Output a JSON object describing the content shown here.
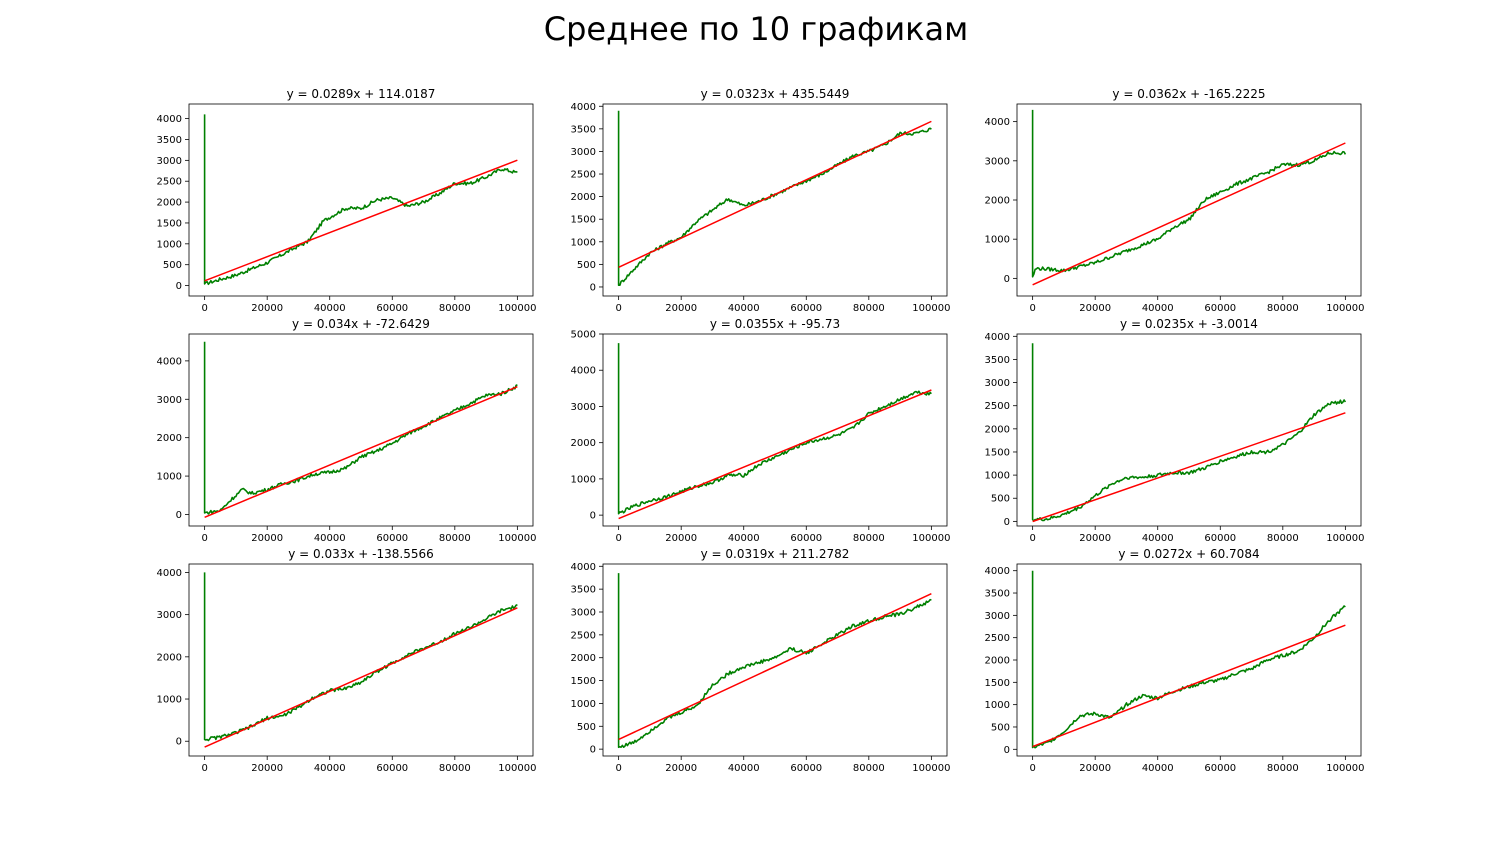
{
  "figure": {
    "title": "Среднее по 10 графикам"
  },
  "colors": {
    "data_line": "#008000",
    "fit_line": "#ff0000",
    "axes": "#000000"
  },
  "chart_data": [
    {
      "type": "line",
      "title": "y = 0.0289x + 114.0187",
      "xlim": [
        -5000,
        105000
      ],
      "ylim": [
        -250,
        4350
      ],
      "xticks": [
        0,
        20000,
        40000,
        60000,
        80000,
        100000
      ],
      "yticks": [
        0,
        500,
        1000,
        1500,
        2000,
        2500,
        3000,
        3500,
        4000
      ],
      "spike": [
        4100,
        3500,
        40
      ],
      "series": [
        {
          "role": "data",
          "x": [
            0,
            5000,
            10000,
            20000,
            30000,
            33000,
            38000,
            45000,
            50000,
            55000,
            60000,
            65000,
            70000,
            75000,
            80000,
            85000,
            90000,
            95000,
            100000
          ],
          "y": [
            40,
            150,
            250,
            550,
            950,
            1050,
            1550,
            1850,
            1850,
            2050,
            2100,
            1900,
            2000,
            2200,
            2450,
            2450,
            2600,
            2800,
            2700
          ]
        },
        {
          "role": "fit",
          "x": [
            0,
            100000
          ],
          "y": [
            114.0187,
            3004.0187
          ]
        }
      ]
    },
    {
      "type": "line",
      "title": "y = 0.0323x + 435.5449",
      "xlim": [
        -5000,
        105000
      ],
      "ylim": [
        -200,
        4050
      ],
      "xticks": [
        0,
        20000,
        40000,
        60000,
        80000,
        100000
      ],
      "yticks": [
        0,
        500,
        1000,
        1500,
        2000,
        2500,
        3000,
        3500,
        4000
      ],
      "spike": [
        3900,
        3500,
        40
      ],
      "series": [
        {
          "role": "data",
          "x": [
            0,
            5000,
            10000,
            15000,
            20000,
            25000,
            30000,
            35000,
            40000,
            45000,
            50000,
            55000,
            60000,
            65000,
            70000,
            75000,
            80000,
            85000,
            90000,
            95000,
            100000
          ],
          "y": [
            40,
            400,
            750,
            950,
            1100,
            1450,
            1700,
            1950,
            1800,
            1900,
            2050,
            2200,
            2350,
            2500,
            2700,
            2900,
            3000,
            3150,
            3400,
            3400,
            3500
          ]
        },
        {
          "role": "fit",
          "x": [
            0,
            100000
          ],
          "y": [
            435.5449,
            3665.5449
          ]
        }
      ]
    },
    {
      "type": "line",
      "title": "y = 0.0362x + -165.2225",
      "xlim": [
        -5000,
        105000
      ],
      "ylim": [
        -450,
        4450
      ],
      "xticks": [
        0,
        20000,
        40000,
        60000,
        80000,
        100000
      ],
      "yticks": [
        0,
        1000,
        2000,
        3000,
        4000
      ],
      "spike": [
        4300,
        2800,
        40
      ],
      "series": [
        {
          "role": "data",
          "x": [
            0,
            1000,
            3000,
            10000,
            15000,
            20000,
            30000,
            40000,
            45000,
            50000,
            55000,
            60000,
            65000,
            70000,
            75000,
            80000,
            85000,
            90000,
            95000,
            100000
          ],
          "y": [
            40,
            250,
            250,
            200,
            300,
            400,
            700,
            1000,
            1300,
            1500,
            2000,
            2200,
            2400,
            2550,
            2700,
            2900,
            2900,
            3000,
            3200,
            3200
          ]
        },
        {
          "role": "fit",
          "x": [
            0,
            100000
          ],
          "y": [
            -165.2225,
            3454.7775
          ]
        }
      ]
    },
    {
      "type": "line",
      "title": "y = 0.034x + -72.6429",
      "xlim": [
        -5000,
        105000
      ],
      "ylim": [
        -300,
        4700
      ],
      "xticks": [
        0,
        20000,
        40000,
        60000,
        80000,
        100000
      ],
      "yticks": [
        0,
        1000,
        2000,
        3000,
        4000
      ],
      "spike": [
        4500,
        100,
        40
      ],
      "series": [
        {
          "role": "data",
          "x": [
            0,
            5000,
            8000,
            12000,
            15000,
            20000,
            25000,
            30000,
            35000,
            40000,
            45000,
            50000,
            55000,
            60000,
            65000,
            70000,
            75000,
            80000,
            85000,
            90000,
            95000,
            100000
          ],
          "y": [
            40,
            100,
            350,
            650,
            550,
            650,
            800,
            900,
            1050,
            1100,
            1200,
            1500,
            1650,
            1850,
            2100,
            2300,
            2500,
            2700,
            2900,
            3100,
            3150,
            3350
          ]
        },
        {
          "role": "fit",
          "x": [
            0,
            100000
          ],
          "y": [
            -72.6429,
            3327.3571
          ]
        }
      ]
    },
    {
      "type": "line",
      "title": "y = 0.0355x + -95.73",
      "xlim": [
        -5000,
        105000
      ],
      "ylim": [
        -300,
        5000
      ],
      "xticks": [
        0,
        20000,
        40000,
        60000,
        80000,
        100000
      ],
      "yticks": [
        0,
        1000,
        2000,
        3000,
        4000,
        5000
      ],
      "spike": [
        4750,
        2200,
        40
      ],
      "series": [
        {
          "role": "data",
          "x": [
            0,
            5000,
            10000,
            15000,
            20000,
            25000,
            30000,
            35000,
            40000,
            45000,
            50000,
            55000,
            60000,
            65000,
            70000,
            75000,
            80000,
            85000,
            90000,
            95000,
            100000
          ],
          "y": [
            40,
            250,
            400,
            500,
            650,
            800,
            900,
            1100,
            1100,
            1400,
            1600,
            1800,
            2000,
            2100,
            2200,
            2400,
            2800,
            3000,
            3200,
            3400,
            3350
          ]
        },
        {
          "role": "fit",
          "x": [
            0,
            100000
          ],
          "y": [
            -95.73,
            3454.27
          ]
        }
      ]
    },
    {
      "type": "line",
      "title": "y = 0.0235x + -3.0014",
      "xlim": [
        -5000,
        105000
      ],
      "ylim": [
        -100,
        4050
      ],
      "xticks": [
        0,
        20000,
        40000,
        60000,
        80000,
        100000
      ],
      "yticks": [
        0,
        500,
        1000,
        1500,
        2000,
        2500,
        3000,
        3500,
        4000
      ],
      "spike": [
        3850,
        2350,
        40
      ],
      "series": [
        {
          "role": "data",
          "x": [
            0,
            5000,
            10000,
            15000,
            20000,
            25000,
            30000,
            35000,
            40000,
            45000,
            50000,
            55000,
            60000,
            65000,
            70000,
            75000,
            80000,
            85000,
            90000,
            95000,
            100000
          ],
          "y": [
            40,
            50,
            150,
            300,
            550,
            800,
            950,
            950,
            1000,
            1050,
            1050,
            1150,
            1300,
            1400,
            1500,
            1500,
            1650,
            1900,
            2300,
            2550,
            2600
          ]
        },
        {
          "role": "fit",
          "x": [
            0,
            100000
          ],
          "y": [
            -3.0014,
            2346.9986
          ]
        }
      ]
    },
    {
      "type": "line",
      "title": "y = 0.033x + -138.5566",
      "xlim": [
        -5000,
        105000
      ],
      "ylim": [
        -350,
        4200
      ],
      "xticks": [
        0,
        20000,
        40000,
        60000,
        80000,
        100000
      ],
      "yticks": [
        0,
        1000,
        2000,
        3000,
        4000
      ],
      "spike": [
        4000,
        2400,
        40
      ],
      "series": [
        {
          "role": "data",
          "x": [
            0,
            5000,
            10000,
            15000,
            20000,
            25000,
            30000,
            35000,
            40000,
            45000,
            50000,
            55000,
            60000,
            65000,
            70000,
            75000,
            80000,
            85000,
            90000,
            95000,
            100000
          ],
          "y": [
            40,
            100,
            200,
            350,
            550,
            600,
            800,
            1050,
            1200,
            1250,
            1400,
            1650,
            1850,
            2050,
            2200,
            2350,
            2550,
            2700,
            2900,
            3100,
            3200
          ]
        },
        {
          "role": "fit",
          "x": [
            0,
            100000
          ],
          "y": [
            -138.5566,
            3161.4434
          ]
        }
      ]
    },
    {
      "type": "line",
      "title": "y = 0.0319x + 211.2782",
      "xlim": [
        -5000,
        105000
      ],
      "ylim": [
        -150,
        4050
      ],
      "xticks": [
        0,
        20000,
        40000,
        60000,
        80000,
        100000
      ],
      "yticks": [
        0,
        500,
        1000,
        1500,
        2000,
        2500,
        3000,
        3500,
        4000
      ],
      "spike": [
        3850,
        3100,
        40
      ],
      "series": [
        {
          "role": "data",
          "x": [
            0,
            5000,
            10000,
            15000,
            20000,
            25000,
            30000,
            35000,
            40000,
            45000,
            50000,
            55000,
            60000,
            65000,
            70000,
            75000,
            80000,
            85000,
            90000,
            95000,
            100000
          ],
          "y": [
            40,
            150,
            400,
            650,
            800,
            950,
            1400,
            1650,
            1800,
            1900,
            2000,
            2200,
            2100,
            2300,
            2500,
            2700,
            2800,
            2900,
            2950,
            3100,
            3250
          ]
        },
        {
          "role": "fit",
          "x": [
            0,
            100000
          ],
          "y": [
            211.2782,
            3401.2782
          ]
        }
      ]
    },
    {
      "type": "line",
      "title": "y = 0.0272x + 60.7084",
      "xlim": [
        -5000,
        105000
      ],
      "ylim": [
        -150,
        4150
      ],
      "xticks": [
        0,
        20000,
        40000,
        60000,
        80000,
        100000
      ],
      "yticks": [
        0,
        500,
        1000,
        1500,
        2000,
        2500,
        3000,
        3500,
        4000
      ],
      "spike": [
        4000,
        3300,
        40
      ],
      "series": [
        {
          "role": "data",
          "x": [
            0,
            5000,
            10000,
            15000,
            20000,
            25000,
            30000,
            35000,
            40000,
            45000,
            50000,
            55000,
            60000,
            65000,
            70000,
            75000,
            80000,
            85000,
            90000,
            95000,
            100000
          ],
          "y": [
            40,
            150,
            400,
            750,
            800,
            700,
            1000,
            1200,
            1150,
            1300,
            1400,
            1500,
            1550,
            1700,
            1800,
            2000,
            2100,
            2200,
            2500,
            2900,
            3200
          ]
        },
        {
          "role": "fit",
          "x": [
            0,
            100000
          ],
          "y": [
            60.7084,
            2780.7084
          ]
        }
      ]
    }
  ]
}
